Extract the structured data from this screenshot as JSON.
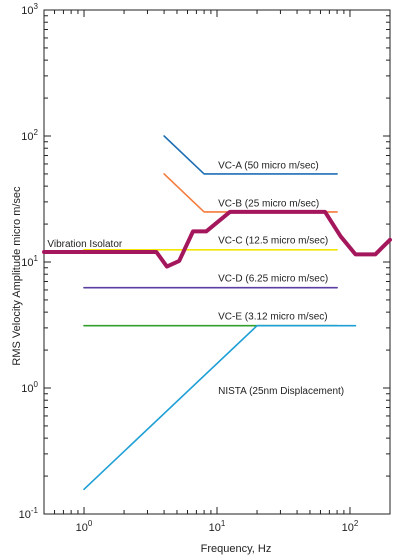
{
  "chart_data": {
    "type": "line",
    "xlabel": "Frequency, Hz",
    "ylabel": "RMS Velocity Amplitude micro m/sec",
    "x_scale": "log",
    "y_scale": "log",
    "xlim": [
      0.5,
      200
    ],
    "ylim": [
      0.1,
      1000
    ],
    "grid": false,
    "x_ticks": [
      {
        "value": 1,
        "base": "10",
        "exp": "0"
      },
      {
        "value": 10,
        "base": "10",
        "exp": "1"
      },
      {
        "value": 100,
        "base": "10",
        "exp": "2"
      }
    ],
    "y_ticks": [
      {
        "value": 0.1,
        "base": "10",
        "exp": "-1"
      },
      {
        "value": 1,
        "base": "10",
        "exp": "0"
      },
      {
        "value": 10,
        "base": "10",
        "exp": "1"
      },
      {
        "value": 100,
        "base": "10",
        "exp": "2"
      },
      {
        "value": 1000,
        "base": "10",
        "exp": "3"
      }
    ],
    "series": [
      {
        "name": "VC-A (50 micro m/sec)",
        "color": "#1f6fb4",
        "stroke_width": 1.6,
        "label_at": [
          10.2,
          55
        ],
        "x": [
          4,
          8,
          80
        ],
        "y": [
          100,
          50,
          50
        ]
      },
      {
        "name": "VC-B (25 micro m/sec)",
        "color": "#f47c3c",
        "stroke_width": 1.6,
        "label_at": [
          10.2,
          27.5
        ],
        "x": [
          4,
          8,
          80
        ],
        "y": [
          50,
          25,
          25
        ]
      },
      {
        "name": "VC-C (12.5 micro m/sec)",
        "color": "#f2e600",
        "stroke_width": 1.6,
        "label_at": [
          10.2,
          14
        ],
        "x": [
          1,
          80
        ],
        "y": [
          12.5,
          12.5
        ]
      },
      {
        "name": "VC-D (6.25 micro m/sec)",
        "color": "#5a3fa0",
        "stroke_width": 1.6,
        "label_at": [
          10.2,
          7.0
        ],
        "x": [
          1,
          80
        ],
        "y": [
          6.25,
          6.25
        ]
      },
      {
        "name": "VC-E (3.12 micro m/sec)",
        "color": "#33a02c",
        "stroke_width": 1.6,
        "label_at": [
          10.2,
          3.5
        ],
        "x": [
          1,
          80
        ],
        "y": [
          3.12,
          3.12
        ]
      },
      {
        "name": "NISTA (25nm Displacement)",
        "color": "#1e9fd6",
        "stroke_width": 1.6,
        "label_at": [
          10.2,
          0.9
        ],
        "x": [
          1,
          20,
          110
        ],
        "y": [
          0.157,
          3.12,
          3.12
        ]
      },
      {
        "name": "Vibration Isolator",
        "color": "#a5175c",
        "stroke_width": 4,
        "label_at": [
          0.53,
          13.2
        ],
        "x": [
          0.5,
          3.5,
          4.2,
          5.2,
          6.6,
          8.3,
          12.5,
          65,
          85,
          110,
          155,
          200
        ],
        "y": [
          12,
          12,
          9.2,
          10.2,
          17.5,
          17.5,
          25,
          25,
          16,
          11.5,
          11.5,
          15
        ]
      }
    ]
  }
}
